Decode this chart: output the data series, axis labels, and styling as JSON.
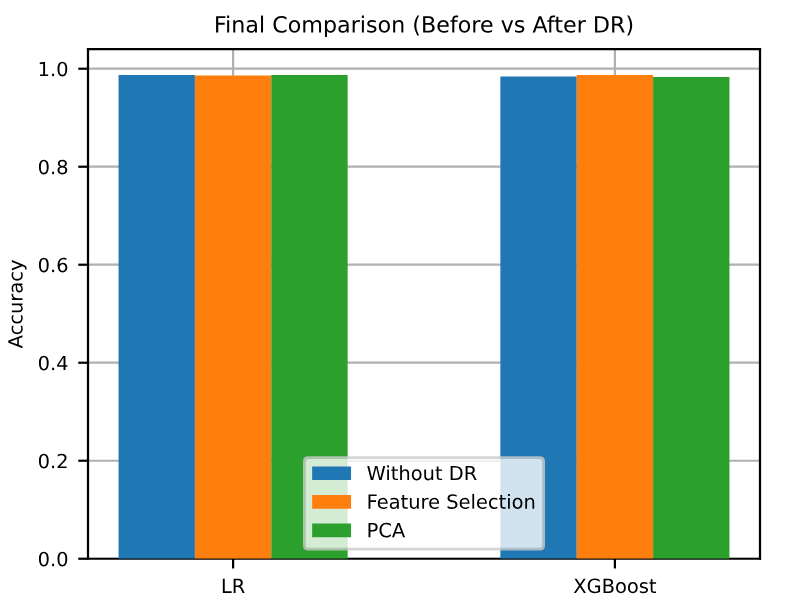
{
  "chart_data": {
    "type": "bar",
    "title": "Final Comparison (Before vs After DR)",
    "ylabel": "Accuracy",
    "categories": [
      "LR",
      "XGBoost"
    ],
    "series": [
      {
        "name": "Without DR",
        "color": "#1f77b4",
        "values": [
          0.987,
          0.984
        ]
      },
      {
        "name": "Feature Selection",
        "color": "#ff7f0e",
        "values": [
          0.986,
          0.987
        ]
      },
      {
        "name": "PCA",
        "color": "#2ca02c",
        "values": [
          0.987,
          0.983
        ]
      }
    ],
    "ylim": [
      0,
      1.04
    ],
    "yticks": [
      {
        "value": 0,
        "label": "0.0"
      },
      {
        "value": 0.2,
        "label": "0.2"
      },
      {
        "value": 0.4,
        "label": "0.4"
      },
      {
        "value": 0.6,
        "label": "0.6"
      },
      {
        "value": 0.8,
        "label": "0.8"
      },
      {
        "value": 1,
        "label": "1.0"
      }
    ],
    "grid": true,
    "legend": "bottom"
  }
}
